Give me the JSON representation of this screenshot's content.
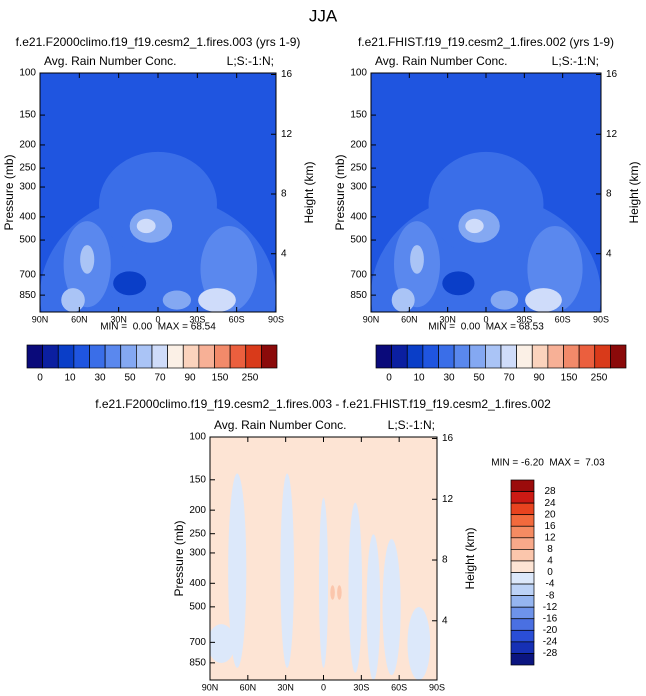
{
  "figure_title": "JJA",
  "chart_data": [
    {
      "type": "contour",
      "title": "f.e21.F2000climo.f19_f19.cesm2_1.fires.003 (yrs 1-9)",
      "subtitle_left": "Avg. Rain Number Conc.",
      "subtitle_right": "L;S:-1:N;",
      "ylabel": "Pressure (mb)",
      "y2label": "Height (km)",
      "min_max": "MIN =  0.00  MAX = 68.54",
      "xlim": [
        90,
        -90
      ],
      "xticks": [
        {
          "value": 90,
          "label": "90N"
        },
        {
          "value": 60,
          "label": "60N"
        },
        {
          "value": 30,
          "label": "30N"
        },
        0,
        {
          "value": -30,
          "label": "30S"
        },
        {
          "value": -60,
          "label": "60S"
        },
        {
          "value": -90,
          "label": "90S"
        }
      ],
      "ylog": true,
      "ylim": [
        1000,
        100
      ],
      "yticks": [
        100,
        150,
        200,
        250,
        300,
        400,
        500,
        700,
        850
      ],
      "y2lim": [
        0.1,
        16.1
      ],
      "y2ticks": [
        4,
        8,
        12,
        16
      ],
      "colorbar": {
        "orientation": "horizontal",
        "colors": [
          "#0a0a7a",
          "#0b1fa0",
          "#0a3ec8",
          "#1f55e0",
          "#3a6ee8",
          "#5a88ee",
          "#84a8f2",
          "#aac4f6",
          "#cfdcfa",
          "#fbf0e6",
          "#fbd3bd",
          "#f7b096",
          "#f28a6a",
          "#eb5f3e",
          "#d93a1a",
          "#8b0a0a"
        ],
        "labels": [
          0,
          10,
          30,
          50,
          70,
          90,
          150,
          250
        ]
      }
    },
    {
      "type": "contour",
      "title": "f.e21.FHIST.f19_f19.cesm2_1.fires.002 (yrs 1-9)",
      "subtitle_left": "Avg. Rain Number Conc.",
      "subtitle_right": "L;S:-1:N;",
      "ylabel": "Pressure (mb)",
      "y2label": "Height (km)",
      "min_max": "MIN =  0.00  MAX = 68.53",
      "xlim": [
        90,
        -90
      ],
      "xticks": [
        {
          "value": 90,
          "label": "90N"
        },
        {
          "value": 60,
          "label": "60N"
        },
        {
          "value": 30,
          "label": "30N"
        },
        0,
        {
          "value": -30,
          "label": "30S"
        },
        {
          "value": -60,
          "label": "60S"
        },
        {
          "value": -90,
          "label": "90S"
        }
      ],
      "ylog": true,
      "ylim": [
        1000,
        100
      ],
      "yticks": [
        100,
        150,
        200,
        250,
        300,
        400,
        500,
        700,
        850
      ],
      "y2lim": [
        0.1,
        16.1
      ],
      "y2ticks": [
        4,
        8,
        12,
        16
      ],
      "colorbar": {
        "orientation": "horizontal",
        "colors": [
          "#0a0a7a",
          "#0b1fa0",
          "#0a3ec8",
          "#1f55e0",
          "#3a6ee8",
          "#5a88ee",
          "#84a8f2",
          "#aac4f6",
          "#cfdcfa",
          "#fbf0e6",
          "#fbd3bd",
          "#f7b096",
          "#f28a6a",
          "#eb5f3e",
          "#d93a1a",
          "#8b0a0a"
        ],
        "labels": [
          0,
          10,
          30,
          50,
          70,
          90,
          150,
          250
        ]
      }
    },
    {
      "type": "contour",
      "title": "f.e21.F2000climo.f19_f19.cesm2_1.fires.003 - f.e21.FHIST.f19_f19.cesm2_1.fires.002",
      "subtitle_left": "Avg. Rain Number Conc.",
      "subtitle_right": "L;S:-1:N;",
      "ylabel": "Pressure (mb)",
      "y2label": "Height (km)",
      "min_max": "MIN = -6.20  MAX =  7.03",
      "xlim": [
        90,
        -90
      ],
      "xticks": [
        {
          "value": 90,
          "label": "90N"
        },
        {
          "value": 60,
          "label": "60N"
        },
        {
          "value": 30,
          "label": "30N"
        },
        0,
        {
          "value": -30,
          "label": "30S"
        },
        {
          "value": -60,
          "label": "60S"
        },
        {
          "value": -90,
          "label": "90S"
        }
      ],
      "ylog": true,
      "ylim": [
        1000,
        100
      ],
      "yticks": [
        100,
        150,
        200,
        250,
        300,
        400,
        500,
        700,
        850
      ],
      "y2lim": [
        0.1,
        16.1
      ],
      "y2ticks": [
        4,
        8,
        12,
        16
      ],
      "colorbar": {
        "orientation": "vertical",
        "colors": [
          "#9b0b0b",
          "#cc1a14",
          "#e8431f",
          "#f26a3d",
          "#f58b62",
          "#f8a98a",
          "#fbc6ac",
          "#fde4d4",
          "#dce8fa",
          "#bcd2f6",
          "#95b5f0",
          "#6e93ea",
          "#4a70e2",
          "#2a4ed6",
          "#1630b5",
          "#0b1580"
        ],
        "labels": [
          28,
          24,
          20,
          16,
          12,
          8,
          4,
          0,
          -4,
          -8,
          -12,
          -16,
          -20,
          -24,
          -28
        ]
      }
    }
  ]
}
